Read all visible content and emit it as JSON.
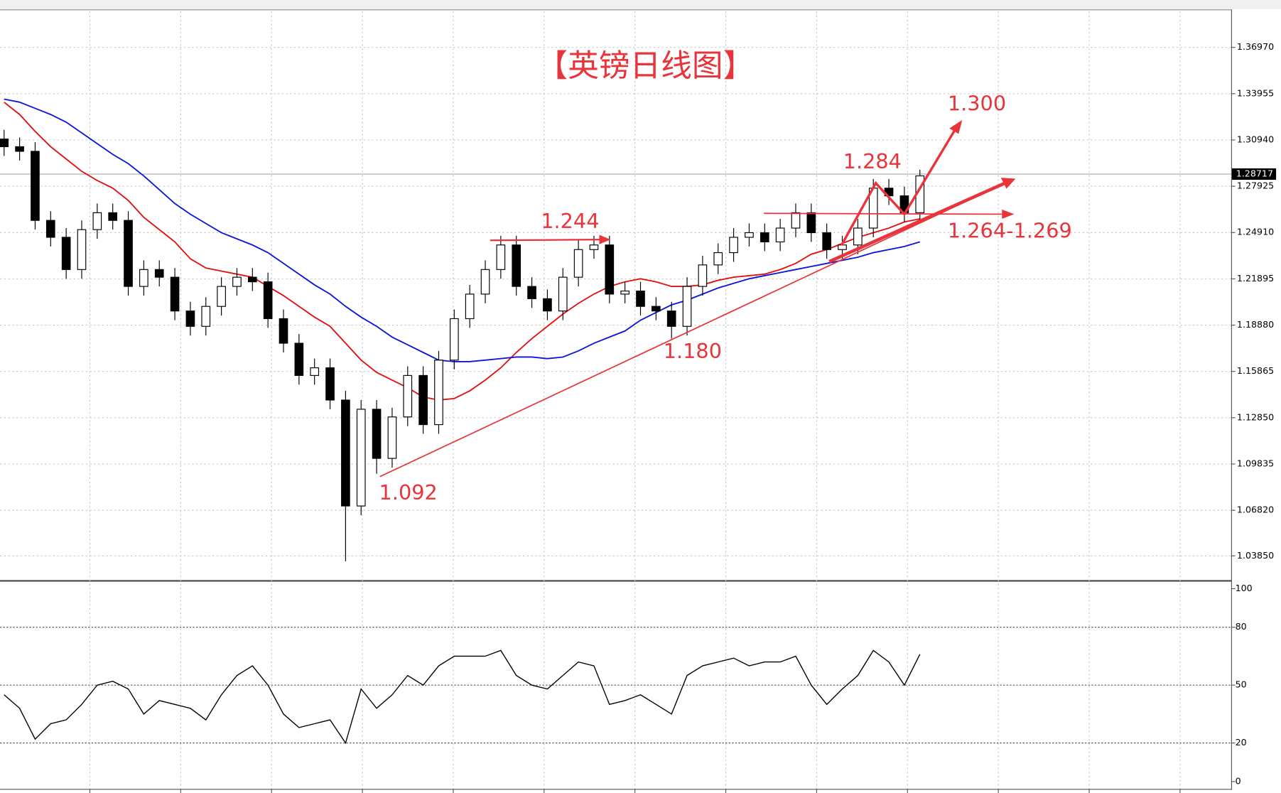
{
  "chart_data": [
    {
      "type": "candlestick",
      "title": "【英镑日线图】",
      "color": "#e8343b",
      "ylim": [
        1.0225,
        1.3931
      ],
      "yticks": [
        {
          "value": 1.3697,
          "label": "1.36970"
        },
        {
          "value": 1.33955,
          "label": "1.33955"
        },
        {
          "value": 1.3094,
          "label": "1.30940"
        },
        {
          "value": 1.27925,
          "label": "1.27925"
        },
        {
          "value": 1.2491,
          "label": "1.24910"
        },
        {
          "value": 1.21895,
          "label": "1.21895"
        },
        {
          "value": 1.1888,
          "label": "1.18880"
        },
        {
          "value": 1.15865,
          "label": "1.15865"
        },
        {
          "value": 1.1285,
          "label": "1.12850"
        },
        {
          "value": 1.09835,
          "label": "1.09835"
        },
        {
          "value": 1.0682,
          "label": "1.06820"
        },
        {
          "value": 1.0385,
          "label": "1.03850"
        }
      ],
      "current_price": {
        "value": 1.28717,
        "label": "1.28717"
      },
      "candles": [
        [
          1.31,
          1.316,
          1.299,
          1.305
        ],
        [
          1.305,
          1.311,
          1.296,
          1.302
        ],
        [
          1.302,
          1.308,
          1.251,
          1.257
        ],
        [
          1.257,
          1.263,
          1.24,
          1.246
        ],
        [
          1.246,
          1.252,
          1.219,
          1.225
        ],
        [
          1.225,
          1.257,
          1.219,
          1.251
        ],
        [
          1.251,
          1.268,
          1.245,
          1.262
        ],
        [
          1.262,
          1.268,
          1.251,
          1.257
        ],
        [
          1.257,
          1.263,
          1.208,
          1.214
        ],
        [
          1.214,
          1.231,
          1.208,
          1.225
        ],
        [
          1.225,
          1.231,
          1.214,
          1.22
        ],
        [
          1.22,
          1.226,
          1.192,
          1.198
        ],
        [
          1.198,
          1.204,
          1.182,
          1.188
        ],
        [
          1.188,
          1.207,
          1.182,
          1.201
        ],
        [
          1.201,
          1.22,
          1.195,
          1.214
        ],
        [
          1.214,
          1.226,
          1.208,
          1.22
        ],
        [
          1.22,
          1.226,
          1.211,
          1.217
        ],
        [
          1.217,
          1.223,
          1.187,
          1.193
        ],
        [
          1.193,
          1.199,
          1.171,
          1.177
        ],
        [
          1.177,
          1.183,
          1.15,
          1.156
        ],
        [
          1.156,
          1.167,
          1.15,
          1.161
        ],
        [
          1.161,
          1.167,
          1.134,
          1.14
        ],
        [
          1.14,
          1.146,
          1.035,
          1.071
        ],
        [
          1.071,
          1.14,
          1.065,
          1.134
        ],
        [
          1.134,
          1.14,
          1.092,
          1.102
        ],
        [
          1.102,
          1.135,
          1.096,
          1.129
        ],
        [
          1.129,
          1.162,
          1.123,
          1.156
        ],
        [
          1.156,
          1.162,
          1.118,
          1.124
        ],
        [
          1.124,
          1.172,
          1.118,
          1.166
        ],
        [
          1.166,
          1.199,
          1.16,
          1.193
        ],
        [
          1.193,
          1.215,
          1.187,
          1.209
        ],
        [
          1.209,
          1.231,
          1.203,
          1.225
        ],
        [
          1.225,
          1.247,
          1.219,
          1.241
        ],
        [
          1.241,
          1.247,
          1.208,
          1.214
        ],
        [
          1.214,
          1.22,
          1.2,
          1.206
        ],
        [
          1.206,
          1.212,
          1.192,
          1.198
        ],
        [
          1.198,
          1.226,
          1.192,
          1.22
        ],
        [
          1.22,
          1.244,
          1.214,
          1.238
        ],
        [
          1.238,
          1.247,
          1.232,
          1.241
        ],
        [
          1.241,
          1.247,
          1.203,
          1.209
        ],
        [
          1.209,
          1.217,
          1.203,
          1.211
        ],
        [
          1.211,
          1.217,
          1.195,
          1.201
        ],
        [
          1.201,
          1.207,
          1.192,
          1.198
        ],
        [
          1.198,
          1.204,
          1.18,
          1.188
        ],
        [
          1.188,
          1.22,
          1.182,
          1.214
        ],
        [
          1.214,
          1.234,
          1.208,
          1.228
        ],
        [
          1.228,
          1.242,
          1.222,
          1.236
        ],
        [
          1.236,
          1.252,
          1.23,
          1.246
        ],
        [
          1.246,
          1.255,
          1.24,
          1.249
        ],
        [
          1.249,
          1.255,
          1.237,
          1.243
        ],
        [
          1.243,
          1.258,
          1.237,
          1.252
        ],
        [
          1.252,
          1.268,
          1.246,
          1.262
        ],
        [
          1.262,
          1.268,
          1.243,
          1.249
        ],
        [
          1.249,
          1.255,
          1.232,
          1.238
        ],
        [
          1.238,
          1.247,
          1.232,
          1.241
        ],
        [
          1.241,
          1.258,
          1.235,
          1.252
        ],
        [
          1.252,
          1.284,
          1.246,
          1.278
        ],
        [
          1.278,
          1.284,
          1.267,
          1.273
        ],
        [
          1.273,
          1.279,
          1.256,
          1.262
        ],
        [
          1.262,
          1.29,
          1.256,
          1.286
        ]
      ],
      "series": [
        {
          "color": "#e01010",
          "values": [
            1.334,
            1.326,
            1.315,
            1.305,
            1.297,
            1.289,
            1.283,
            1.278,
            1.27,
            1.259,
            1.251,
            1.243,
            1.232,
            1.226,
            1.224,
            1.222,
            1.22,
            1.214,
            1.208,
            1.201,
            1.194,
            1.188,
            1.177,
            1.166,
            1.158,
            1.153,
            1.148,
            1.142,
            1.14,
            1.141,
            1.146,
            1.153,
            1.161,
            1.171,
            1.18,
            1.188,
            1.196,
            1.203,
            1.209,
            1.214,
            1.217,
            1.219,
            1.217,
            1.214,
            1.214,
            1.215,
            1.218,
            1.22,
            1.221,
            1.222,
            1.225,
            1.229,
            1.235,
            1.238,
            1.242,
            1.246,
            1.249,
            1.252,
            1.256,
            1.258
          ]
        },
        {
          "color": "#0a16d8",
          "values": [
            1.336,
            1.334,
            1.33,
            1.326,
            1.321,
            1.314,
            1.307,
            1.3,
            1.294,
            1.286,
            1.277,
            1.268,
            1.261,
            1.255,
            1.249,
            1.245,
            1.241,
            1.236,
            1.229,
            1.222,
            1.215,
            1.209,
            1.201,
            1.194,
            1.188,
            1.181,
            1.176,
            1.171,
            1.166,
            1.165,
            1.165,
            1.166,
            1.167,
            1.168,
            1.168,
            1.167,
            1.168,
            1.172,
            1.177,
            1.181,
            1.185,
            1.192,
            1.197,
            1.202,
            1.205,
            1.209,
            1.213,
            1.216,
            1.219,
            1.221,
            1.223,
            1.225,
            1.227,
            1.229,
            1.231,
            1.233,
            1.236,
            1.238,
            1.24,
            1.243
          ]
        }
      ],
      "annotations": [
        "1.300",
        "1.284",
        "1.244",
        "1.264-1.269",
        "1.180",
        "1.092"
      ]
    },
    {
      "type": "line",
      "ylim": [
        -3.8,
        103
      ],
      "yticks": [
        100,
        80,
        50,
        20,
        0
      ],
      "color": "#000000",
      "values": [
        45,
        38,
        22,
        30,
        32,
        40,
        50,
        52,
        48,
        35,
        42,
        40,
        38,
        32,
        45,
        55,
        60,
        50,
        35,
        28,
        30,
        32,
        20,
        48,
        38,
        45,
        55,
        50,
        60,
        65,
        65,
        65,
        68,
        55,
        50,
        48,
        55,
        62,
        60,
        40,
        42,
        45,
        40,
        35,
        55,
        60,
        62,
        64,
        60,
        62,
        62,
        65,
        50,
        40,
        48,
        55,
        68,
        62,
        50,
        66
      ]
    }
  ]
}
